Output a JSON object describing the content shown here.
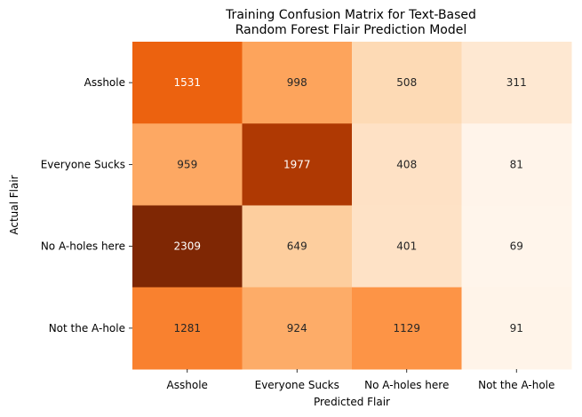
{
  "chart_data": {
    "type": "heatmap",
    "title": "Training Confusion Matrix for Text-Based\nRandom Forest Flair Prediction Model",
    "title_lines": [
      "Training Confusion Matrix for Text-Based",
      "Random Forest Flair Prediction Model"
    ],
    "xlabel": "Predicted Flair",
    "ylabel": "Actual Flair",
    "x_categories": [
      "Asshole",
      "Everyone Sucks",
      "No A-holes here",
      "Not the A-hole"
    ],
    "y_categories": [
      "Asshole",
      "Everyone Sucks",
      "No A-holes here",
      "Not the A-hole"
    ],
    "values": [
      [
        1531,
        998,
        508,
        311
      ],
      [
        959,
        1977,
        408,
        81
      ],
      [
        2309,
        649,
        401,
        69
      ],
      [
        1281,
        924,
        1129,
        91
      ]
    ],
    "colormap": "Oranges",
    "colorbar": false,
    "annotations": true
  }
}
